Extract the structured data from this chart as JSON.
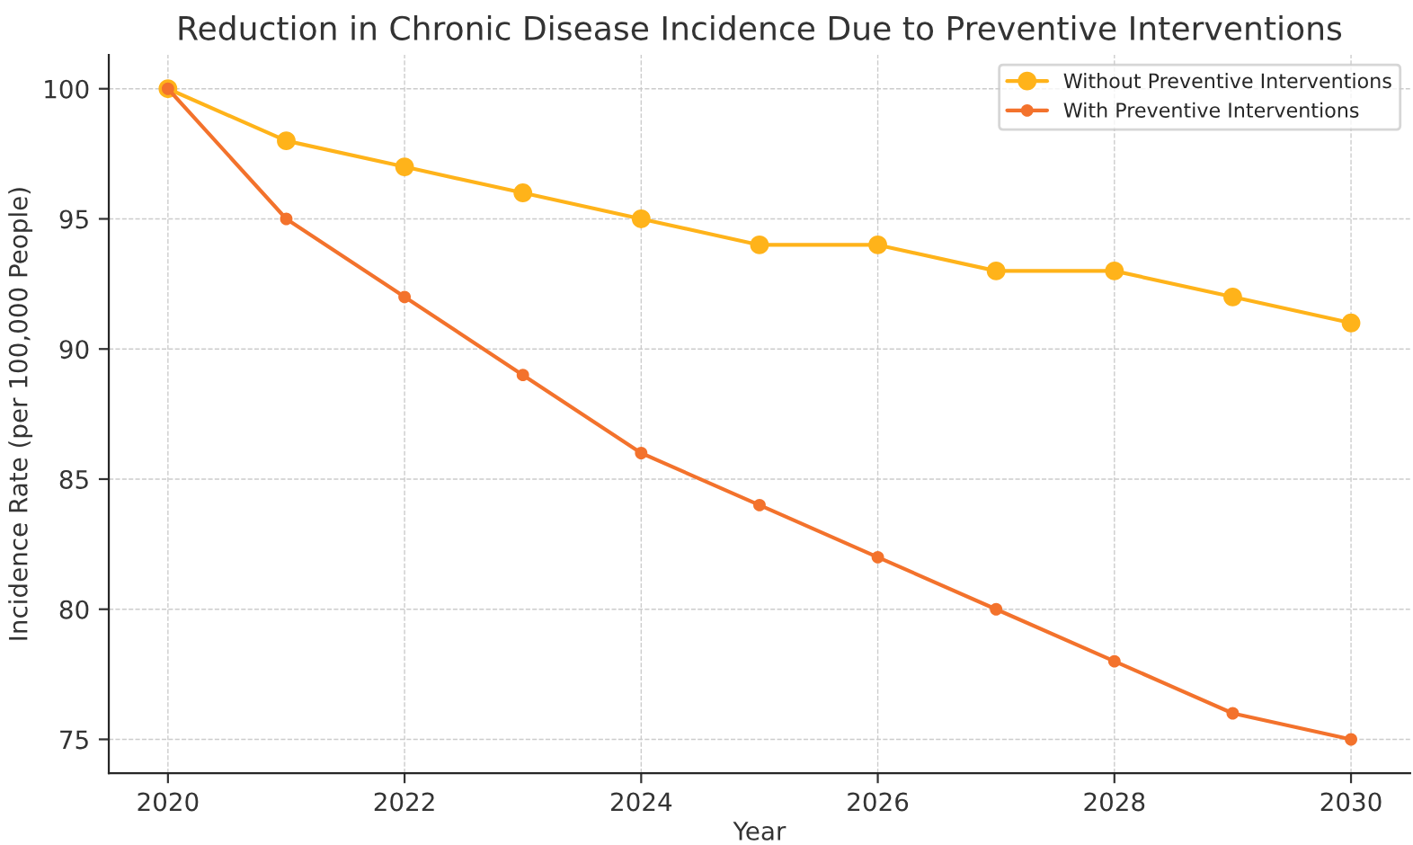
{
  "chart_data": {
    "type": "line",
    "title": "Reduction in Chronic Disease Incidence Due to Preventive Interventions",
    "xlabel": "Year",
    "ylabel": "Incidence Rate (per 100,000 People)",
    "x": [
      2020,
      2021,
      2022,
      2023,
      2024,
      2025,
      2026,
      2027,
      2028,
      2029,
      2030
    ],
    "series": [
      {
        "name": "Without Preventive Interventions",
        "color": "#ffb31a",
        "values": [
          100,
          98,
          97,
          96,
          95,
          94,
          94,
          93,
          93,
          92,
          91
        ]
      },
      {
        "name": "With Preventive Interventions",
        "color": "#f3722c",
        "values": [
          100,
          95,
          92,
          89,
          86,
          84,
          82,
          80,
          78,
          76,
          75
        ]
      }
    ],
    "xlim": [
      2019.5,
      2030.5
    ],
    "xticks": [
      2020,
      2022,
      2024,
      2026,
      2028,
      2030
    ],
    "ylim": [
      73.7,
      101.3
    ],
    "yticks": [
      75,
      80,
      85,
      90,
      95,
      100
    ],
    "grid": true,
    "legend": "top right",
    "marker": "circle",
    "line_style": "solid"
  }
}
